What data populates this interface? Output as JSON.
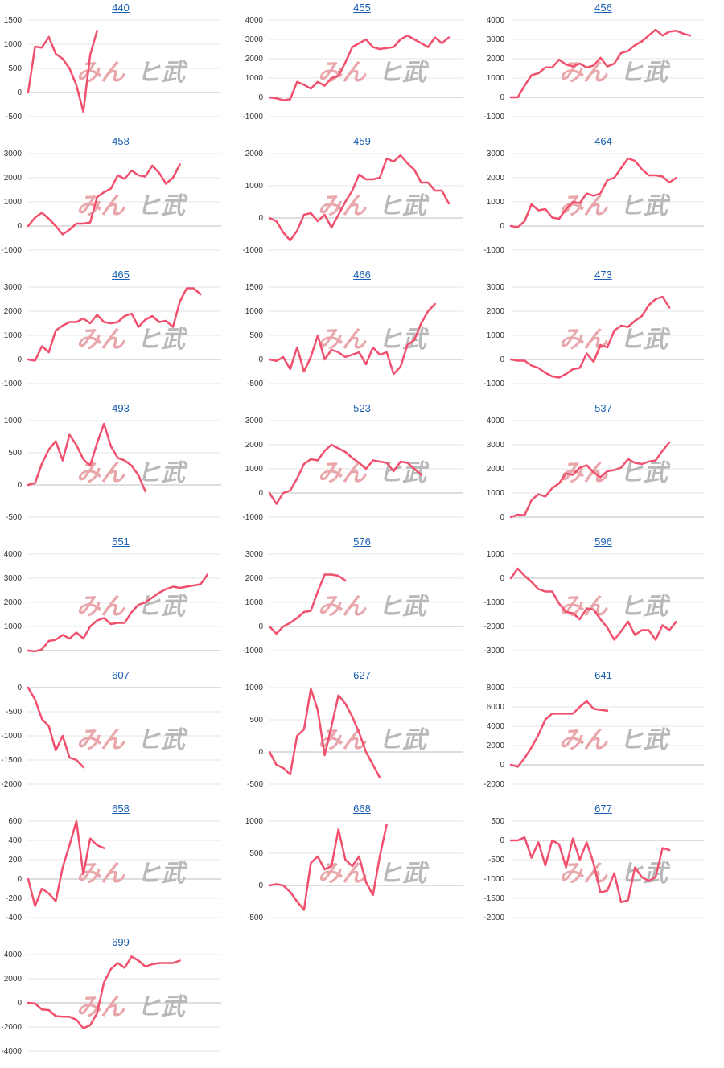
{
  "watermark": {
    "part1": "みん",
    "part2": "ヒ武",
    "color1": "#e9a7ab",
    "color2": "#b9b9b9"
  },
  "line_color": "#f0506e",
  "chart_data": [
    {
      "type": "line",
      "title": "440",
      "ylim": [
        -500,
        1500
      ],
      "yticks": [
        -500,
        0,
        500,
        1000,
        1500
      ],
      "values": [
        0,
        950,
        930,
        1150,
        800,
        700,
        500,
        150,
        -400,
        780,
        1280
      ]
    },
    {
      "type": "line",
      "title": "455",
      "ylim": [
        -1000,
        4000
      ],
      "yticks": [
        -1000,
        0,
        1000,
        2000,
        3000,
        4000
      ],
      "values": [
        0,
        -50,
        -150,
        -100,
        800,
        650,
        450,
        800,
        600,
        1000,
        1100,
        1800,
        2600,
        2800,
        3000,
        2600,
        2500,
        2550,
        2600,
        3000,
        3200,
        3000,
        2800,
        2600,
        3100,
        2800,
        3100
      ]
    },
    {
      "type": "line",
      "title": "456",
      "ylim": [
        -1000,
        4000
      ],
      "yticks": [
        -1000,
        0,
        1000,
        2000,
        3000,
        4000
      ],
      "values": [
        0,
        0,
        600,
        1150,
        1250,
        1550,
        1550,
        1950,
        1700,
        1600,
        1750,
        1550,
        1650,
        2050,
        1600,
        1750,
        2300,
        2400,
        2700,
        2900,
        3200,
        3500,
        3200,
        3400,
        3450,
        3300,
        3200
      ]
    },
    {
      "type": "line",
      "title": "458",
      "ylim": [
        -1000,
        3000
      ],
      "yticks": [
        -1000,
        0,
        1000,
        2000,
        3000
      ],
      "values": [
        0,
        350,
        550,
        300,
        0,
        -350,
        -150,
        100,
        100,
        150,
        1200,
        1400,
        1550,
        2100,
        1950,
        2300,
        2100,
        2050,
        2500,
        2200,
        1750,
        2000,
        2550
      ]
    },
    {
      "type": "line",
      "title": "459",
      "ylim": [
        -1000,
        2000
      ],
      "yticks": [
        -1000,
        0,
        1000,
        2000
      ],
      "values": [
        0,
        -100,
        -450,
        -700,
        -400,
        100,
        150,
        -100,
        100,
        -300,
        100,
        500,
        850,
        1350,
        1200,
        1200,
        1250,
        1850,
        1750,
        1950,
        1700,
        1500,
        1100,
        1100,
        850,
        850,
        450
      ]
    },
    {
      "type": "line",
      "title": "464",
      "ylim": [
        -1000,
        3000
      ],
      "yticks": [
        -1000,
        0,
        1000,
        2000,
        3000
      ],
      "values": [
        0,
        -50,
        200,
        900,
        650,
        700,
        350,
        300,
        700,
        1000,
        950,
        1350,
        1250,
        1350,
        1900,
        2000,
        2400,
        2800,
        2700,
        2350,
        2100,
        2100,
        2050,
        1800,
        2000
      ]
    },
    {
      "type": "line",
      "title": "465",
      "ylim": [
        -1000,
        3000
      ],
      "yticks": [
        -1000,
        0,
        1000,
        2000,
        3000
      ],
      "values": [
        0,
        -50,
        550,
        300,
        1200,
        1400,
        1550,
        1550,
        1700,
        1500,
        1850,
        1550,
        1500,
        1550,
        1800,
        1900,
        1350,
        1650,
        1800,
        1550,
        1600,
        1350,
        2400,
        2950,
        2950,
        2700
      ]
    },
    {
      "type": "line",
      "title": "466",
      "ylim": [
        -500,
        1500
      ],
      "yticks": [
        -500,
        0,
        500,
        1000,
        1500
      ],
      "values": [
        0,
        -30,
        50,
        -200,
        250,
        -250,
        50,
        500,
        0,
        200,
        150,
        50,
        100,
        150,
        -100,
        250,
        100,
        150,
        -300,
        -150,
        300,
        400,
        750,
        1000,
        1150
      ]
    },
    {
      "type": "line",
      "title": "473",
      "ylim": [
        -1000,
        3000
      ],
      "yticks": [
        -1000,
        0,
        1000,
        2000,
        3000
      ],
      "values": [
        0,
        -50,
        -50,
        -250,
        -350,
        -550,
        -700,
        -750,
        -600,
        -400,
        -350,
        250,
        -100,
        600,
        500,
        1200,
        1400,
        1350,
        1600,
        1800,
        2250,
        2500,
        2600,
        2150
      ]
    },
    {
      "type": "line",
      "title": "493",
      "ylim": [
        -500,
        1000
      ],
      "yticks": [
        -500,
        0,
        500,
        1000
      ],
      "values": [
        0,
        30,
        330,
        550,
        680,
        380,
        780,
        620,
        400,
        300,
        650,
        950,
        600,
        420,
        380,
        300,
        150,
        -100
      ]
    },
    {
      "type": "line",
      "title": "523",
      "ylim": [
        -1000,
        3000
      ],
      "yticks": [
        -1000,
        0,
        1000,
        2000,
        3000
      ],
      "values": [
        0,
        -450,
        0,
        100,
        600,
        1200,
        1400,
        1350,
        1750,
        2000,
        1850,
        1700,
        1450,
        1250,
        1000,
        1350,
        1300,
        1250,
        900,
        1300,
        1250,
        1000,
        750
      ]
    },
    {
      "type": "line",
      "title": "537",
      "ylim": [
        0,
        4000
      ],
      "yticks": [
        0,
        1000,
        2000,
        3000,
        4000
      ],
      "values": [
        0,
        100,
        80,
        700,
        950,
        850,
        1200,
        1400,
        1800,
        1750,
        2050,
        2150,
        1850,
        1650,
        1900,
        1950,
        2050,
        2400,
        2250,
        2200,
        2300,
        2350,
        2750,
        3100
      ]
    },
    {
      "type": "line",
      "title": "551",
      "ylim": [
        0,
        4000
      ],
      "yticks": [
        0,
        1000,
        2000,
        3000,
        4000
      ],
      "values": [
        0,
        -30,
        50,
        400,
        450,
        650,
        500,
        750,
        500,
        1000,
        1250,
        1350,
        1100,
        1150,
        1150,
        1600,
        1900,
        2000,
        2200,
        2400,
        2550,
        2650,
        2600,
        2650,
        2700,
        2750,
        3150
      ]
    },
    {
      "type": "line",
      "title": "576",
      "ylim": [
        -1000,
        3000
      ],
      "yticks": [
        -1000,
        0,
        1000,
        2000,
        3000
      ],
      "values": [
        0,
        -300,
        0,
        150,
        350,
        600,
        650,
        1450,
        2150,
        2150,
        2100,
        1900
      ]
    },
    {
      "type": "line",
      "title": "596",
      "ylim": [
        -3000,
        1000
      ],
      "yticks": [
        -3000,
        -2000,
        -1000,
        0,
        1000
      ],
      "values": [
        0,
        400,
        100,
        -150,
        -450,
        -550,
        -550,
        -1050,
        -1400,
        -1450,
        -1700,
        -1250,
        -1300,
        -1700,
        -2050,
        -2550,
        -2200,
        -1800,
        -2350,
        -2150,
        -2150,
        -2550,
        -1950,
        -2150,
        -1800
      ]
    },
    {
      "type": "line",
      "title": "607",
      "ylim": [
        -2000,
        0
      ],
      "yticks": [
        -2000,
        -1500,
        -1000,
        -500,
        0
      ],
      "values": [
        0,
        -250,
        -650,
        -800,
        -1300,
        -1000,
        -1450,
        -1500,
        -1650
      ]
    },
    {
      "type": "line",
      "title": "627",
      "ylim": [
        -500,
        1000
      ],
      "yticks": [
        -500,
        0,
        500,
        1000
      ],
      "values": [
        0,
        -200,
        -250,
        -350,
        250,
        350,
        980,
        650,
        -50,
        400,
        880,
        750,
        550,
        300,
        0,
        -200,
        -400
      ]
    },
    {
      "type": "line",
      "title": "641",
      "ylim": [
        -2000,
        8000
      ],
      "yticks": [
        -2000,
        0,
        2000,
        4000,
        6000,
        8000
      ],
      "values": [
        0,
        -200,
        700,
        1800,
        3100,
        4700,
        5300,
        5300,
        5300,
        5300,
        6000,
        6600,
        5800,
        5700,
        5600
      ]
    },
    {
      "type": "line",
      "title": "658",
      "ylim": [
        -400,
        600
      ],
      "yticks": [
        -400,
        -200,
        0,
        200,
        400,
        600
      ],
      "values": [
        0,
        -280,
        -100,
        -150,
        -230,
        120,
        350,
        600,
        50,
        420,
        350,
        320
      ]
    },
    {
      "type": "line",
      "title": "668",
      "ylim": [
        -500,
        1000
      ],
      "yticks": [
        -500,
        0,
        500,
        1000
      ],
      "values": [
        0,
        20,
        0,
        -100,
        -250,
        -380,
        350,
        450,
        250,
        300,
        870,
        400,
        300,
        450,
        50,
        -150,
        450,
        950
      ]
    },
    {
      "type": "line",
      "title": "677",
      "ylim": [
        -2000,
        500
      ],
      "yticks": [
        -2000,
        -1500,
        -1000,
        -500,
        0,
        500
      ],
      "values": [
        0,
        0,
        80,
        -450,
        -50,
        -650,
        0,
        -100,
        -700,
        50,
        -500,
        -50,
        -600,
        -1350,
        -1300,
        -850,
        -1600,
        -1550,
        -700,
        -950,
        -1050,
        -950,
        -200,
        -250
      ]
    },
    {
      "type": "line",
      "title": "699",
      "ylim": [
        -4000,
        4000
      ],
      "yticks": [
        -4000,
        -2000,
        0,
        2000,
        4000
      ],
      "values": [
        0,
        -50,
        -550,
        -600,
        -1100,
        -1150,
        -1150,
        -1400,
        -2100,
        -1850,
        -850,
        1700,
        2800,
        3300,
        2900,
        3850,
        3500,
        3000,
        3200,
        3300,
        3300,
        3300,
        3500
      ]
    }
  ]
}
